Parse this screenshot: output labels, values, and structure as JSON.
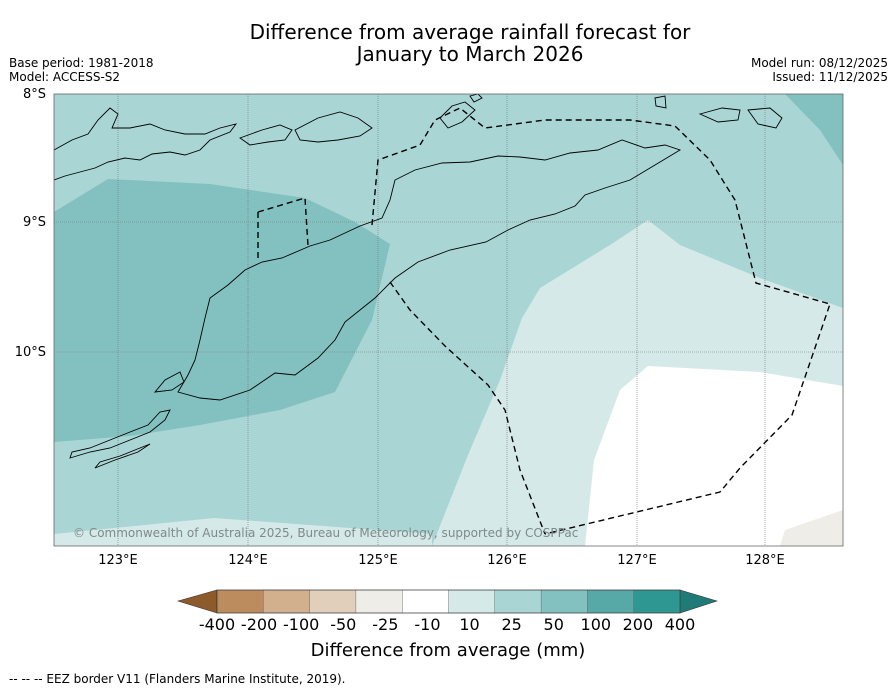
{
  "title": {
    "line1": "Difference from average rainfall forecast for",
    "line2": "January to March 2026"
  },
  "meta": {
    "base_period": "Base period: 1981-2018",
    "model": "Model: ACCESS-S2",
    "model_run": "Model run: 08/12/2025",
    "issued": "Issued: 11/12/2025"
  },
  "map": {
    "lat_labels": [
      "8°S",
      "9°S",
      "10°S"
    ],
    "lon_labels": [
      "123°E",
      "124°E",
      "125°E",
      "126°E",
      "127°E",
      "128°E"
    ],
    "copyright": "© Commonwealth of Australia 2025, Bureau of Meteorology, supported by COSPPac"
  },
  "colorbar": {
    "title": "Difference from average (mm)",
    "ticks": [
      "-400",
      "-200",
      "-100",
      "-50",
      "-25",
      "-10",
      "10",
      "25",
      "50",
      "100",
      "200",
      "400"
    ],
    "colors": [
      "#a66f3a",
      "#bc8c5f",
      "#d2b08e",
      "#e2cfbb",
      "#efede8",
      "#ffffff",
      "#d4e9e8",
      "#aad5d5",
      "#82c1c0",
      "#57a9a8",
      "#2f9792",
      "#1e7b77"
    ]
  },
  "footnote": "-- -- -- EEZ border V11 (Flanders Marine Institute, 2019)."
}
